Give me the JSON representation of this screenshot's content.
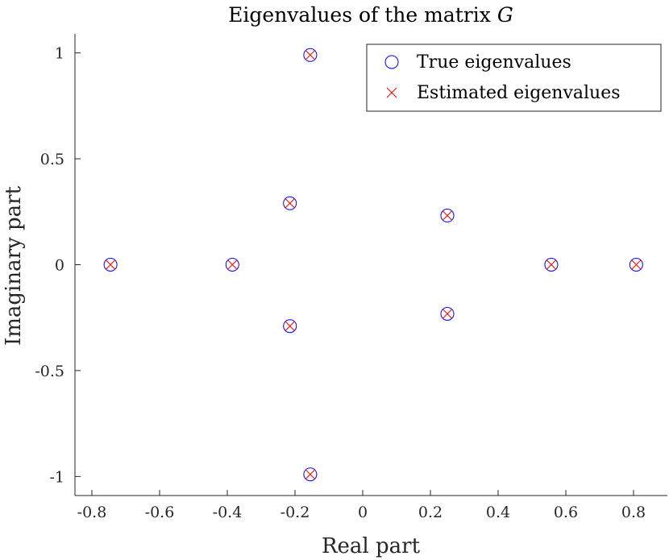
{
  "chart_data": {
    "type": "scatter",
    "title": "Eigenvalues of the matrix",
    "title_symbol": "G",
    "xlabel": "Real part",
    "ylabel": "Imaginary part",
    "xlim": [
      -0.85,
      0.9
    ],
    "ylim": [
      -1.09,
      1.09
    ],
    "xticks": [
      -0.8,
      -0.6,
      -0.4,
      -0.2,
      0,
      0.2,
      0.4,
      0.6,
      0.8
    ],
    "xtick_labels": [
      "-0.8",
      "-0.6",
      "-0.4",
      "-0.2",
      "0",
      "0.2",
      "0.4",
      "0.6",
      "0.8"
    ],
    "yticks": [
      1,
      0.5,
      0,
      -0.5,
      -1
    ],
    "ytick_labels": [
      "1",
      "0.5",
      "0",
      "-0.5",
      "-1"
    ],
    "grid": false,
    "legend_position": "top-right",
    "series": [
      {
        "name": "True eigenvalues",
        "marker": "circle",
        "color": "#0000ff",
        "x": [
          -0.155,
          -0.155,
          -0.215,
          -0.215,
          0.25,
          0.25,
          -0.745,
          -0.385,
          0.557,
          0.808
        ],
        "y": [
          0.99,
          -0.99,
          0.29,
          -0.29,
          0.232,
          -0.232,
          0,
          0,
          0,
          0
        ]
      },
      {
        "name": "Estimated eigenvalues",
        "marker": "x",
        "color": "#ff0000",
        "x": [
          -0.155,
          -0.155,
          -0.215,
          -0.215,
          0.25,
          0.25,
          -0.745,
          -0.385,
          0.557,
          0.808
        ],
        "y": [
          0.99,
          -0.99,
          0.29,
          -0.29,
          0.232,
          -0.232,
          0,
          0,
          0,
          0
        ]
      }
    ]
  }
}
